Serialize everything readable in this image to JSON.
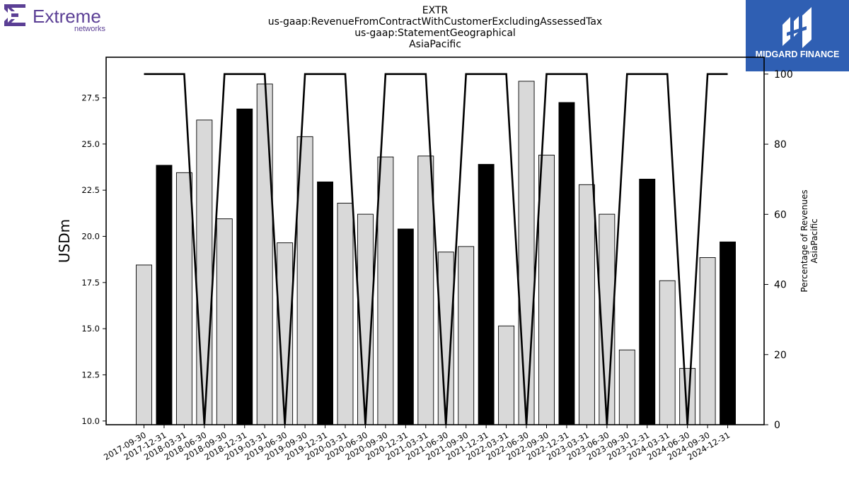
{
  "header": {
    "left_logo": {
      "name": "Extreme",
      "sub": "networks",
      "color": "#5b3f95"
    },
    "right_logo": {
      "name": "MIDGARD FINANCE",
      "bg": "#2f5fb3"
    },
    "title_lines": [
      "EXTR",
      "us-gaap:RevenueFromContractWithCustomerExcludingAssessedTax",
      "us-gaap:StatementGeographical",
      "AsiaPacific"
    ]
  },
  "chart_data": {
    "type": "bar",
    "categories": [
      "2017-09-30",
      "2017-12-31",
      "2018-03-31",
      "2018-06-30",
      "2018-09-30",
      "2018-12-31",
      "2019-03-31",
      "2019-06-30",
      "2019-09-30",
      "2019-12-31",
      "2020-03-31",
      "2020-06-30",
      "2020-09-30",
      "2020-12-31",
      "2021-03-31",
      "2021-06-30",
      "2021-09-30",
      "2021-12-31",
      "2022-03-31",
      "2022-06-30",
      "2022-09-30",
      "2022-12-31",
      "2023-03-31",
      "2023-06-30",
      "2023-09-30",
      "2023-12-31",
      "2024-03-31",
      "2024-06-30",
      "2024-09-30",
      "2024-12-31"
    ],
    "series": [
      {
        "values": [
          18.45,
          23.85,
          23.45,
          26.3,
          20.95,
          26.9,
          28.25,
          19.65,
          25.4,
          22.95,
          21.8,
          21.2,
          24.3,
          20.4,
          24.35,
          19.15,
          19.45,
          23.9,
          15.15,
          28.4,
          24.4,
          27.25,
          22.8,
          21.2,
          13.85,
          23.1,
          17.6,
          12.85,
          18.85,
          19.7
        ],
        "highlight": [
          false,
          true,
          false,
          false,
          false,
          true,
          false,
          false,
          false,
          true,
          false,
          false,
          false,
          true,
          false,
          false,
          false,
          true,
          false,
          false,
          false,
          true,
          false,
          false,
          false,
          true,
          false,
          false,
          false,
          true
        ],
        "color": "#d9d9d9",
        "highlight_color": "#000000"
      },
      {
        "values": [
          100,
          100,
          100,
          0,
          100,
          100,
          100,
          0,
          100,
          100,
          100,
          0,
          100,
          100,
          100,
          0,
          100,
          100,
          100,
          0,
          100,
          100,
          100,
          0,
          100,
          100,
          100,
          0,
          100,
          100
        ],
        "color": "#000000",
        "axis": "right"
      }
    ],
    "ylabel": "USDm",
    "ylim": [
      9.8,
      29.7
    ],
    "yticks": [
      "10.0",
      "12.5",
      "15.0",
      "17.5",
      "20.0",
      "22.5",
      "25.0",
      "27.5"
    ],
    "ytick_values": [
      10.0,
      12.5,
      15.0,
      17.5,
      20.0,
      22.5,
      25.0,
      27.5
    ],
    "y2label_lines": [
      "Percentage of Revenues",
      "AsiaPacific"
    ],
    "y2lim": [
      0,
      104.8
    ],
    "y2ticks": [
      "0",
      "20",
      "40",
      "60",
      "80",
      "100"
    ],
    "y2tick_values": [
      0,
      20,
      40,
      60,
      80,
      100
    ],
    "grid": false,
    "legend": "none"
  }
}
